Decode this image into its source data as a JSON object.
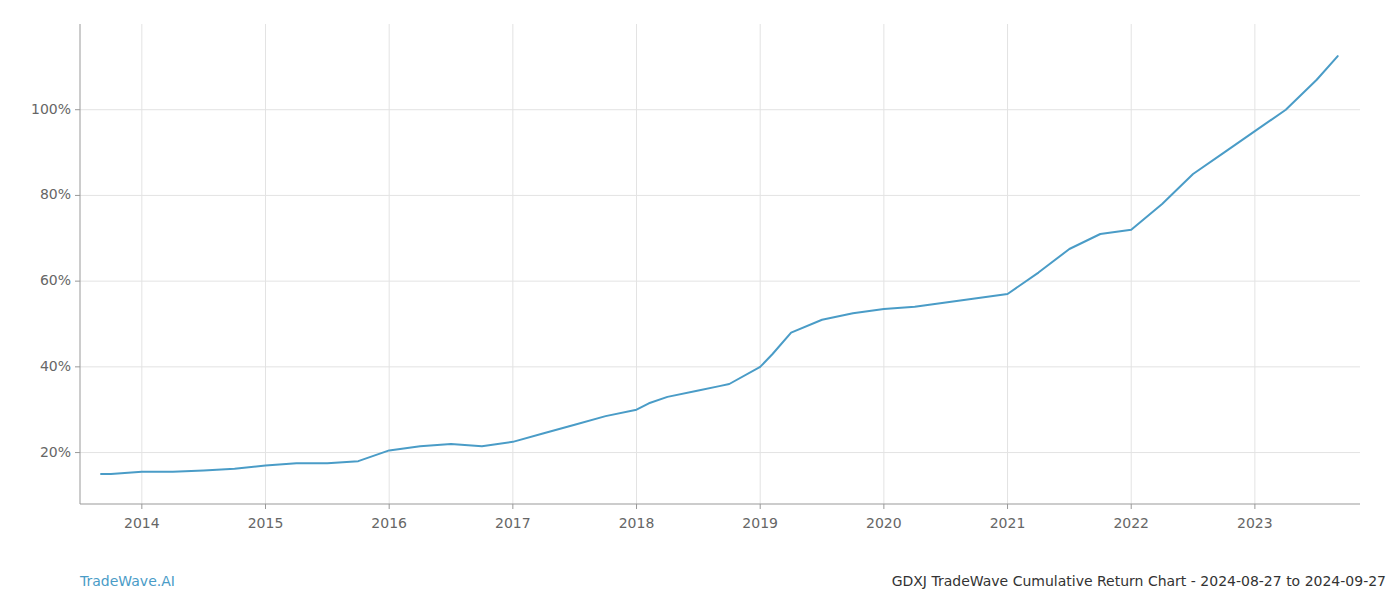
{
  "chart_data": {
    "type": "line",
    "title": "GDXJ TradeWave Cumulative Return Chart - 2024-08-27 to 2024-09-27",
    "annotations": [
      "TradeWave.AI"
    ],
    "x": [
      2013.67,
      2013.75,
      2014.0,
      2014.25,
      2014.5,
      2014.75,
      2015.0,
      2015.25,
      2015.5,
      2015.75,
      2016.0,
      2016.25,
      2016.5,
      2016.75,
      2017.0,
      2017.25,
      2017.5,
      2017.75,
      2018.0,
      2018.1,
      2018.25,
      2018.5,
      2018.67,
      2018.75,
      2019.0,
      2019.1,
      2019.25,
      2019.5,
      2019.75,
      2020.0,
      2020.25,
      2020.5,
      2020.75,
      2021.0,
      2021.25,
      2021.5,
      2021.75,
      2022.0,
      2022.25,
      2022.5,
      2022.75,
      2023.0,
      2023.25,
      2023.5,
      2023.67
    ],
    "values": [
      15.0,
      15.0,
      15.5,
      15.5,
      15.8,
      16.2,
      17.0,
      17.5,
      17.5,
      18.0,
      20.5,
      21.5,
      22.0,
      21.5,
      22.5,
      24.5,
      26.5,
      28.5,
      30.0,
      31.5,
      33.0,
      34.5,
      35.5,
      36.0,
      40.0,
      43.0,
      48.0,
      51.0,
      52.5,
      53.5,
      54.0,
      55.0,
      56.0,
      57.0,
      62.0,
      67.5,
      71.0,
      72.0,
      78.0,
      85.0,
      90.0,
      95.0,
      100.0,
      107.0,
      112.5
    ],
    "color": "#4a9cc7",
    "xlim": [
      2013.5,
      2023.85
    ],
    "xticks": [
      2014,
      2015,
      2016,
      2017,
      2018,
      2019,
      2020,
      2021,
      2022,
      2023
    ],
    "ylim": [
      8,
      120
    ],
    "yticks": [
      {
        "value": 20,
        "label": "20%"
      },
      {
        "value": 40,
        "label": "40%"
      },
      {
        "value": 60,
        "label": "60%"
      },
      {
        "value": 80,
        "label": "80%"
      },
      {
        "value": 100,
        "label": "100%"
      }
    ],
    "grid": true
  }
}
